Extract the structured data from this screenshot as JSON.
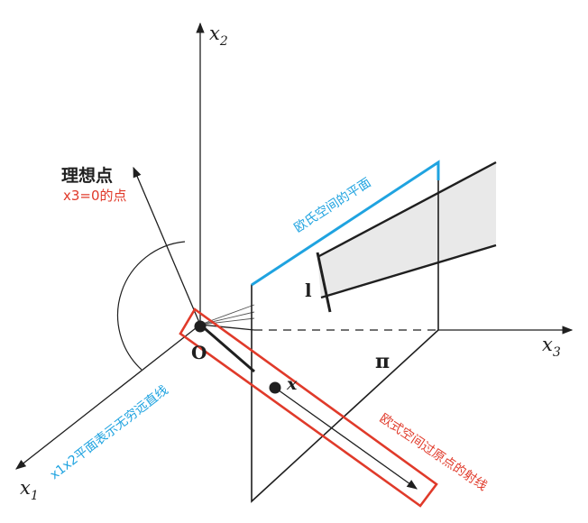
{
  "labels": {
    "axis_x1": "x",
    "axis_x1_sub": "1",
    "axis_x2": "x",
    "axis_x2_sub": "2",
    "axis_x3": "x",
    "axis_x3_sub": "3",
    "origin": "O",
    "ideal_point": "理想点",
    "ideal_point_note": "x3=0的点",
    "euclidean_plane": "欧氏空间的平面",
    "line_at_infinity": "x1x2平面表示无穷远直线",
    "ray_through_origin": "欧式空间过原点的射线",
    "point_x": "x",
    "line_l": "l",
    "plane_pi": "π"
  },
  "colors": {
    "ink": "#1f1f1f",
    "annotation_red": "#e03a2a",
    "annotation_blue": "#1fa3e0",
    "cone_fill": "#e9e9e9"
  }
}
